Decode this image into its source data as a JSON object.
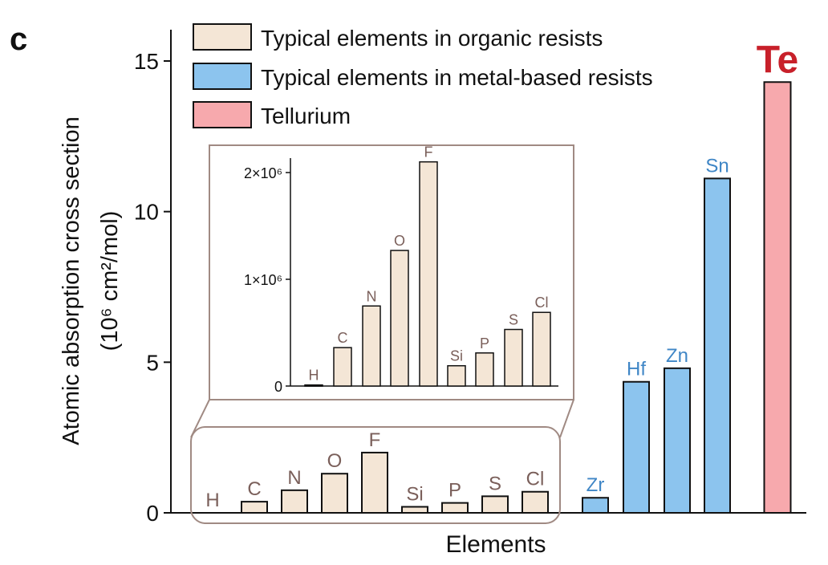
{
  "panel_label": "c",
  "colors": {
    "organic": "#f4e6d6",
    "metal": "#8cc4ee",
    "tellurium": "#f7a9ad",
    "organic_text": "#7a5f5a",
    "metal_text": "#3f86c6",
    "te_text": "#c8202a",
    "inset_border": "#a08a83"
  },
  "chart_data": [
    {
      "type": "bar",
      "xlabel": "Elements",
      "ylabel_line1": "Atomic absorption cross section",
      "ylabel_line2": "(10⁶ cm²/mol)",
      "ylim": [
        0,
        16
      ],
      "yticks": [
        0,
        5,
        10,
        15
      ],
      "ytick_labels": [
        "0",
        "5",
        "10",
        "15"
      ],
      "categories": [
        "H",
        "C",
        "N",
        "O",
        "F",
        "Si",
        "P",
        "S",
        "Cl",
        "Zr",
        "Hf",
        "Zn",
        "Sn",
        "Te"
      ],
      "values": [
        0.02,
        0.37,
        0.75,
        1.3,
        2.0,
        0.2,
        0.33,
        0.55,
        0.7,
        0.5,
        4.35,
        4.8,
        11.1,
        14.3
      ],
      "groups": [
        "organic",
        "organic",
        "organic",
        "organic",
        "organic",
        "organic",
        "organic",
        "organic",
        "organic",
        "metal",
        "metal",
        "metal",
        "metal",
        "tellurium"
      ],
      "legend": [
        {
          "label": "Typical elements in organic resists",
          "group": "organic"
        },
        {
          "label": "Typical elements in metal-based resists",
          "group": "metal"
        },
        {
          "label": "Tellurium",
          "group": "tellurium"
        }
      ],
      "legend_position": "top-left"
    },
    {
      "type": "bar",
      "inset": true,
      "categories": [
        "H",
        "C",
        "N",
        "O",
        "F",
        "Si",
        "P",
        "S",
        "Cl"
      ],
      "values": [
        0.01,
        0.36,
        0.75,
        1.27,
        2.1,
        0.19,
        0.31,
        0.53,
        0.69
      ],
      "ylim": [
        0,
        2.2
      ],
      "yticks": [
        0,
        1,
        2
      ],
      "ytick_labels": [
        "0",
        "1×10⁶",
        "2×10⁶"
      ]
    }
  ]
}
